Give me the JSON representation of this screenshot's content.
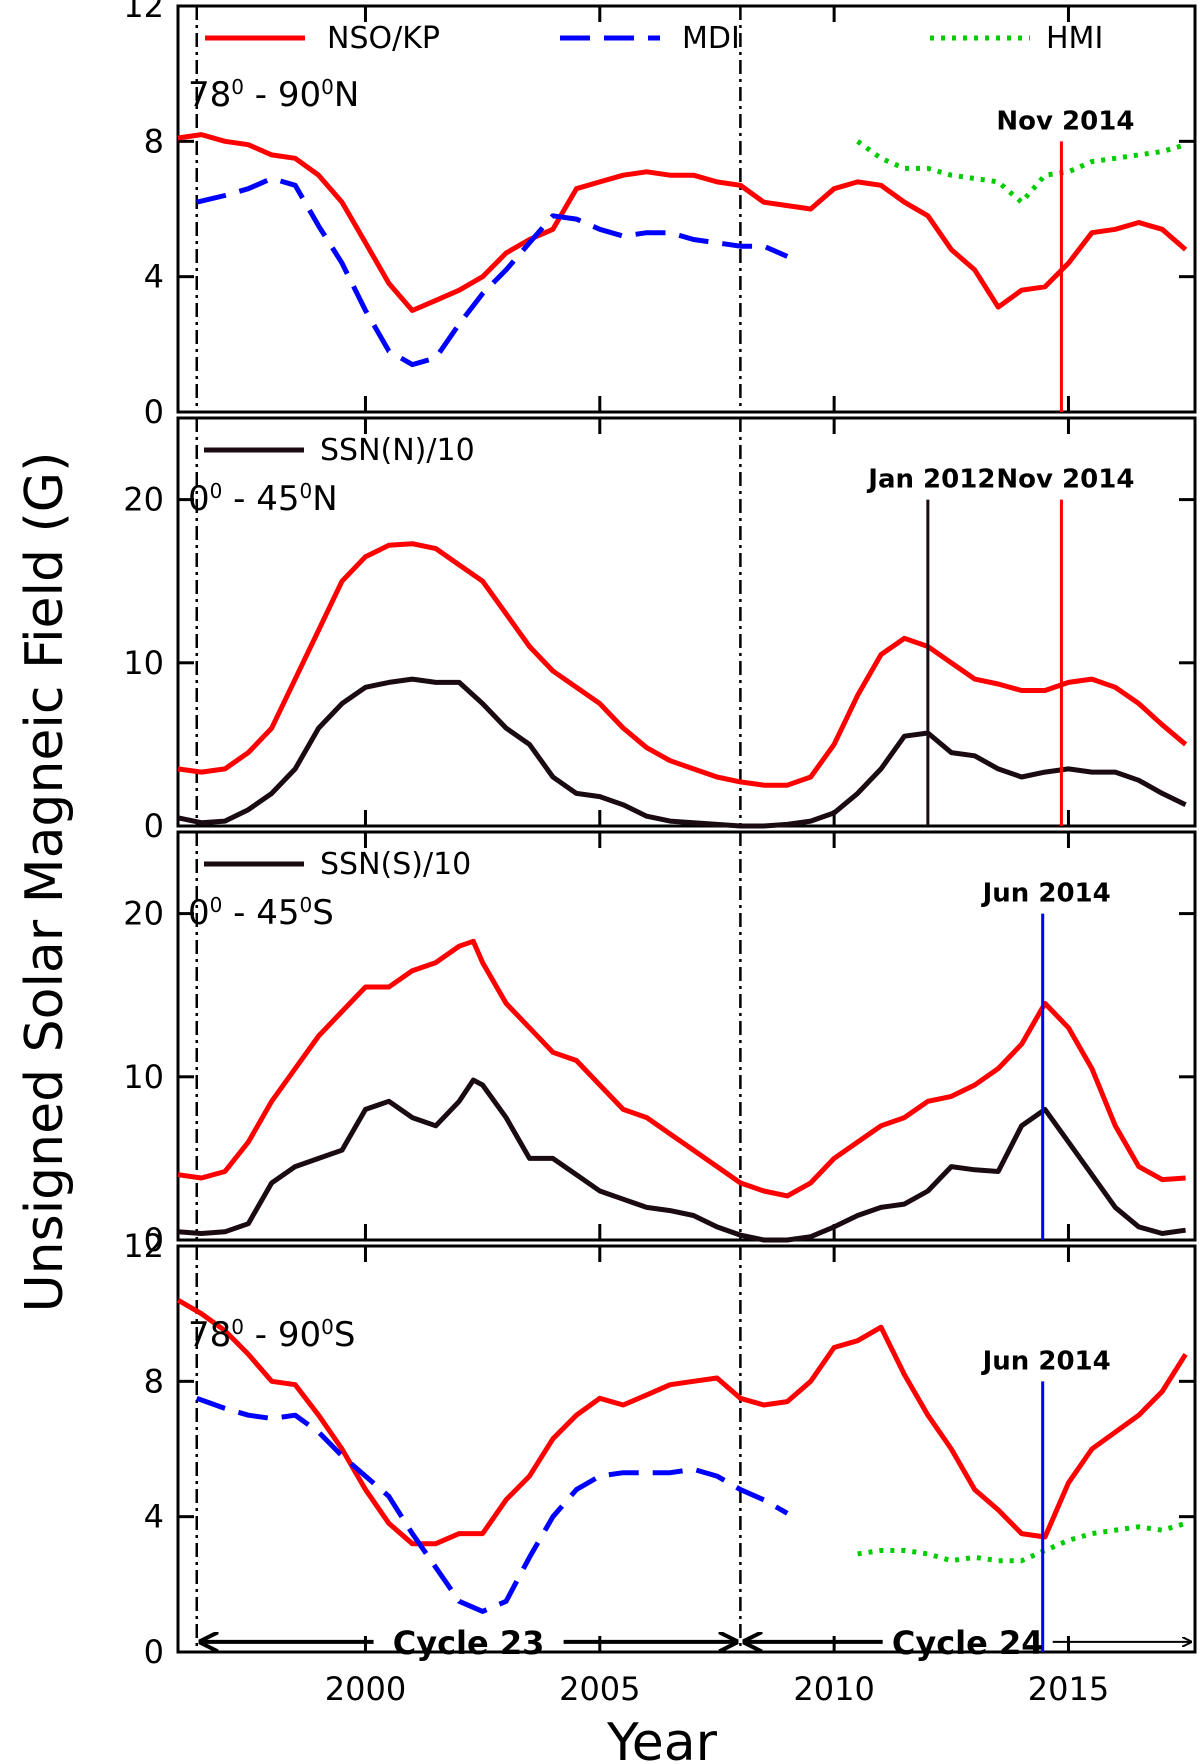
{
  "chart_data": {
    "type": "line",
    "ylabel": "Unsigned Solar Magneic Field (G)",
    "xlabel": "Year",
    "xlim": [
      1996,
      2017.7
    ],
    "xticks": [
      2000,
      2005,
      2010,
      2015
    ],
    "xtick_labels": [
      "2000",
      "2005",
      "2010",
      "2015"
    ],
    "dividers": [
      1996.4,
      2008.0
    ],
    "legend": [
      {
        "label": "NSO/KP",
        "color": "#ff0000",
        "style": "solid"
      },
      {
        "label": "MDI",
        "color": "#0000ff",
        "style": "dashed"
      },
      {
        "label": "HMI",
        "color": "#00cc00",
        "style": "dotted"
      }
    ],
    "cycles": [
      {
        "label": "Cycle 23",
        "from": 1996.4,
        "to": 2008.0
      },
      {
        "label": "Cycle 24",
        "from": 2008.0,
        "to": 2017.7
      }
    ],
    "panels": [
      {
        "region": "78° - 90°N",
        "region_main": "78",
        "region_mid": "0",
        "region_tail": " - 90",
        "region_sup2": "0",
        "region_end": "N",
        "ylim": [
          0,
          12
        ],
        "yticks": [
          0,
          4,
          8,
          12
        ],
        "ytick_labels": [
          "0",
          "4",
          "8",
          "12"
        ],
        "legend_entry": "",
        "series": [
          {
            "name": "NSO/KP",
            "color": "#ff0000",
            "style": "solid",
            "x": [
              1996.0,
              1996.5,
              1997.0,
              1997.5,
              1998.0,
              1998.5,
              1999.0,
              1999.5,
              2000.0,
              2000.5,
              2001.0,
              2001.5,
              2002.0,
              2002.5,
              2003.0,
              2003.5,
              2004.0,
              2004.5,
              2005.0,
              2005.5,
              2006.0,
              2006.5,
              2007.0,
              2007.5,
              2008.0,
              2008.5,
              2009.0,
              2009.5,
              2010.0,
              2010.5,
              2011.0,
              2011.5,
              2012.0,
              2012.5,
              2013.0,
              2013.5,
              2014.0,
              2014.5,
              2015.0,
              2015.5,
              2016.0,
              2016.5,
              2017.0,
              2017.5
            ],
            "y": [
              8.1,
              8.2,
              8.0,
              7.9,
              7.6,
              7.5,
              7.0,
              6.2,
              5.0,
              3.8,
              3.0,
              3.3,
              3.6,
              4.0,
              4.7,
              5.1,
              5.4,
              6.6,
              6.8,
              7.0,
              7.1,
              7.0,
              7.0,
              6.8,
              6.7,
              6.2,
              6.1,
              6.0,
              6.6,
              6.8,
              6.7,
              6.2,
              5.8,
              4.8,
              4.2,
              3.1,
              3.6,
              3.7,
              4.4,
              5.3,
              5.4,
              5.6,
              5.4,
              4.8
            ]
          },
          {
            "name": "MDI",
            "color": "#0000ff",
            "style": "dashed",
            "x": [
              1996.4,
              1997.0,
              1997.5,
              1998.0,
              1998.5,
              1999.0,
              1999.5,
              2000.0,
              2000.5,
              2001.0,
              2001.5,
              2002.0,
              2002.5,
              2003.0,
              2003.5,
              2004.0,
              2004.5,
              2005.0,
              2005.5,
              2006.0,
              2006.5,
              2007.0,
              2007.5,
              2008.0,
              2008.5,
              2009.0
            ],
            "y": [
              6.2,
              6.4,
              6.6,
              6.9,
              6.7,
              5.5,
              4.4,
              3.0,
              1.8,
              1.4,
              1.6,
              2.6,
              3.5,
              4.2,
              5.0,
              5.8,
              5.7,
              5.4,
              5.2,
              5.3,
              5.3,
              5.1,
              5.0,
              4.9,
              4.9,
              4.6
            ]
          },
          {
            "name": "HMI",
            "color": "#00cc00",
            "style": "dotted",
            "x": [
              2010.5,
              2011.0,
              2011.5,
              2012.0,
              2012.5,
              2013.0,
              2013.5,
              2014.0,
              2014.5,
              2015.0,
              2015.5,
              2016.0,
              2016.5,
              2017.0,
              2017.5
            ],
            "y": [
              8.0,
              7.5,
              7.2,
              7.2,
              7.0,
              6.9,
              6.8,
              6.2,
              7.0,
              7.1,
              7.4,
              7.5,
              7.6,
              7.7,
              7.9
            ]
          }
        ],
        "markers": [
          {
            "label": "Nov 2014",
            "x": 2014.85,
            "color": "#ff0000",
            "y_top": 8.0
          }
        ]
      },
      {
        "region": "0° - 45°N",
        "region_main": "0",
        "region_mid": "0",
        "region_tail": " - 45",
        "region_sup2": "0",
        "region_end": "N",
        "ylim": [
          0,
          25
        ],
        "yticks": [
          0,
          10,
          20
        ],
        "ytick_labels": [
          "0",
          "10",
          "20"
        ],
        "legend_entry": "SSN(N)/10",
        "series": [
          {
            "name": "NSO/KP",
            "color": "#ff0000",
            "style": "solid",
            "x": [
              1996.0,
              1996.5,
              1997.0,
              1997.5,
              1998.0,
              1998.5,
              1999.0,
              1999.5,
              2000.0,
              2000.5,
              2001.0,
              2001.5,
              2002.0,
              2002.5,
              2003.0,
              2003.5,
              2004.0,
              2004.5,
              2005.0,
              2005.5,
              2006.0,
              2006.5,
              2007.0,
              2007.5,
              2008.0,
              2008.5,
              2009.0,
              2009.5,
              2010.0,
              2010.5,
              2011.0,
              2011.5,
              2012.0,
              2012.5,
              2013.0,
              2013.5,
              2014.0,
              2014.5,
              2015.0,
              2015.5,
              2016.0,
              2016.5,
              2017.0,
              2017.5
            ],
            "y": [
              3.5,
              3.3,
              3.5,
              4.5,
              6.0,
              9.0,
              12.0,
              15.0,
              16.5,
              17.2,
              17.3,
              17.0,
              16.0,
              15.0,
              13.0,
              11.0,
              9.5,
              8.5,
              7.5,
              6.0,
              4.8,
              4.0,
              3.5,
              3.0,
              2.7,
              2.5,
              2.5,
              3.0,
              5.0,
              8.0,
              10.5,
              11.5,
              11.0,
              10.0,
              9.0,
              8.7,
              8.3,
              8.3,
              8.8,
              9.0,
              8.5,
              7.5,
              6.2,
              5.0
            ]
          },
          {
            "name": "SSN(N)/10",
            "color": "#1a0a12",
            "style": "solid",
            "x": [
              1996.0,
              1996.5,
              1997.0,
              1997.5,
              1998.0,
              1998.5,
              1999.0,
              1999.5,
              2000.0,
              2000.5,
              2001.0,
              2001.5,
              2002.0,
              2002.5,
              2003.0,
              2003.5,
              2004.0,
              2004.5,
              2005.0,
              2005.5,
              2006.0,
              2006.5,
              2007.0,
              2007.5,
              2008.0,
              2008.5,
              2009.0,
              2009.5,
              2010.0,
              2010.5,
              2011.0,
              2011.5,
              2012.0,
              2012.5,
              2013.0,
              2013.5,
              2014.0,
              2014.5,
              2015.0,
              2015.5,
              2016.0,
              2016.5,
              2017.0,
              2017.5
            ],
            "y": [
              0.5,
              0.2,
              0.3,
              1.0,
              2.0,
              3.5,
              6.0,
              7.5,
              8.5,
              8.8,
              9.0,
              8.8,
              8.8,
              7.5,
              6.0,
              5.0,
              3.0,
              2.0,
              1.8,
              1.3,
              0.6,
              0.3,
              0.2,
              0.1,
              0.0,
              0.0,
              0.1,
              0.3,
              0.8,
              2.0,
              3.5,
              5.5,
              5.7,
              4.5,
              4.3,
              3.5,
              3.0,
              3.3,
              3.5,
              3.3,
              3.3,
              2.8,
              2.0,
              1.3
            ]
          }
        ],
        "markers": [
          {
            "label": "Jan 2012",
            "x": 2012.0,
            "color": "#1a0a12",
            "y_top": 20.0
          },
          {
            "label": "Nov 2014",
            "x": 2014.85,
            "color": "#ff0000",
            "y_top": 20.0
          }
        ]
      },
      {
        "region": "0° - 45°S",
        "region_main": "0",
        "region_mid": "0",
        "region_tail": " - 45",
        "region_sup2": "0",
        "region_end": "S",
        "ylim": [
          0,
          25
        ],
        "yticks": [
          0,
          10,
          20
        ],
        "ytick_labels": [
          "0",
          "10",
          "20"
        ],
        "legend_entry": "SSN(S)/10",
        "series": [
          {
            "name": "NSO/KP",
            "color": "#ff0000",
            "style": "solid",
            "x": [
              1996.0,
              1996.5,
              1997.0,
              1997.5,
              1998.0,
              1998.5,
              1999.0,
              1999.5,
              2000.0,
              2000.5,
              2001.0,
              2001.5,
              2002.0,
              2002.3,
              2002.5,
              2003.0,
              2003.5,
              2004.0,
              2004.5,
              2005.0,
              2005.5,
              2006.0,
              2006.5,
              2007.0,
              2007.5,
              2008.0,
              2008.5,
              2009.0,
              2009.5,
              2010.0,
              2010.5,
              2011.0,
              2011.5,
              2012.0,
              2012.5,
              2013.0,
              2013.5,
              2014.0,
              2014.5,
              2015.0,
              2015.5,
              2016.0,
              2016.5,
              2017.0,
              2017.5
            ],
            "y": [
              4.0,
              3.8,
              4.2,
              6.0,
              8.5,
              10.5,
              12.5,
              14.0,
              15.5,
              15.5,
              16.5,
              17.0,
              18.0,
              18.3,
              17.0,
              14.5,
              13.0,
              11.5,
              11.0,
              9.5,
              8.0,
              7.5,
              6.5,
              5.5,
              4.5,
              3.5,
              3.0,
              2.7,
              3.5,
              5.0,
              6.0,
              7.0,
              7.5,
              8.5,
              8.8,
              9.5,
              10.5,
              12.0,
              14.5,
              13.0,
              10.5,
              7.0,
              4.5,
              3.7,
              3.8
            ]
          },
          {
            "name": "SSN(S)/10",
            "color": "#1a0a12",
            "style": "solid",
            "x": [
              1996.0,
              1996.5,
              1997.0,
              1997.5,
              1998.0,
              1998.5,
              1999.0,
              1999.5,
              2000.0,
              2000.5,
              2001.0,
              2001.5,
              2002.0,
              2002.3,
              2002.5,
              2003.0,
              2003.5,
              2004.0,
              2004.5,
              2005.0,
              2005.5,
              2006.0,
              2006.5,
              2007.0,
              2007.5,
              2008.0,
              2008.5,
              2009.0,
              2009.5,
              2010.0,
              2010.5,
              2011.0,
              2011.5,
              2012.0,
              2012.5,
              2013.0,
              2013.5,
              2014.0,
              2014.5,
              2015.0,
              2015.5,
              2016.0,
              2016.5,
              2017.0,
              2017.5
            ],
            "y": [
              0.5,
              0.4,
              0.5,
              1.0,
              3.5,
              4.5,
              5.0,
              5.5,
              8.0,
              8.5,
              7.5,
              7.0,
              8.5,
              9.8,
              9.5,
              7.5,
              5.0,
              5.0,
              4.0,
              3.0,
              2.5,
              2.0,
              1.8,
              1.5,
              0.8,
              0.3,
              0.0,
              0.0,
              0.2,
              0.8,
              1.5,
              2.0,
              2.2,
              3.0,
              4.5,
              4.3,
              4.2,
              7.0,
              8.0,
              6.0,
              4.0,
              2.0,
              0.8,
              0.4,
              0.6
            ]
          }
        ],
        "markers": [
          {
            "label": "Jun 2014",
            "x": 2014.45,
            "color": "#0000ff",
            "y_top": 20.0
          }
        ]
      },
      {
        "region": "78° - 90°S",
        "region_main": "78",
        "region_mid": "0",
        "region_tail": " - 90",
        "region_sup2": "0",
        "region_end": "S",
        "ylim": [
          0,
          12
        ],
        "yticks": [
          0,
          4,
          8,
          12
        ],
        "ytick_labels": [
          "0",
          "4",
          "8",
          "12"
        ],
        "legend_entry": "",
        "series": [
          {
            "name": "NSO/KP",
            "color": "#ff0000",
            "style": "solid",
            "x": [
              1996.0,
              1996.5,
              1997.0,
              1997.5,
              1998.0,
              1998.5,
              1999.0,
              1999.5,
              2000.0,
              2000.5,
              2001.0,
              2001.5,
              2002.0,
              2002.5,
              2003.0,
              2003.5,
              2004.0,
              2004.5,
              2005.0,
              2005.5,
              2006.0,
              2006.5,
              2007.0,
              2007.5,
              2008.0,
              2008.5,
              2009.0,
              2009.5,
              2010.0,
              2010.5,
              2011.0,
              2011.5,
              2012.0,
              2012.5,
              2013.0,
              2013.5,
              2014.0,
              2014.5,
              2015.0,
              2015.5,
              2016.0,
              2016.5,
              2017.0,
              2017.5
            ],
            "y": [
              10.4,
              10.0,
              9.5,
              8.8,
              8.0,
              7.9,
              7.0,
              6.0,
              4.8,
              3.8,
              3.2,
              3.2,
              3.5,
              3.5,
              4.5,
              5.2,
              6.3,
              7.0,
              7.5,
              7.3,
              7.6,
              7.9,
              8.0,
              8.1,
              7.5,
              7.3,
              7.4,
              8.0,
              9.0,
              9.2,
              9.6,
              8.2,
              7.0,
              6.0,
              4.8,
              4.2,
              3.5,
              3.4,
              5.0,
              6.0,
              6.5,
              7.0,
              7.7,
              8.8
            ]
          },
          {
            "name": "MDI",
            "color": "#0000ff",
            "style": "dashed",
            "x": [
              1996.4,
              1997.0,
              1997.5,
              1998.0,
              1998.5,
              1999.0,
              1999.5,
              2000.0,
              2000.5,
              2001.0,
              2001.5,
              2002.0,
              2002.5,
              2003.0,
              2003.5,
              2004.0,
              2004.5,
              2005.0,
              2005.5,
              2006.0,
              2006.5,
              2007.0,
              2007.5,
              2008.0,
              2008.5,
              2009.0
            ],
            "y": [
              7.5,
              7.2,
              7.0,
              6.9,
              7.0,
              6.5,
              5.8,
              5.2,
              4.6,
              3.5,
              2.5,
              1.5,
              1.2,
              1.5,
              2.8,
              4.0,
              4.8,
              5.2,
              5.3,
              5.3,
              5.3,
              5.4,
              5.2,
              4.8,
              4.5,
              4.1
            ]
          },
          {
            "name": "HMI",
            "color": "#00cc00",
            "style": "dotted",
            "x": [
              2010.5,
              2011.0,
              2011.5,
              2012.0,
              2012.5,
              2013.0,
              2013.5,
              2014.0,
              2014.5,
              2015.0,
              2015.5,
              2016.0,
              2016.5,
              2017.0,
              2017.5
            ],
            "y": [
              2.9,
              3.0,
              3.0,
              2.9,
              2.7,
              2.8,
              2.7,
              2.7,
              3.0,
              3.3,
              3.5,
              3.6,
              3.7,
              3.6,
              3.8
            ]
          }
        ],
        "markers": [
          {
            "label": "Jun 2014",
            "x": 2014.45,
            "color": "#0000ff",
            "y_top": 8.0
          }
        ]
      }
    ]
  }
}
